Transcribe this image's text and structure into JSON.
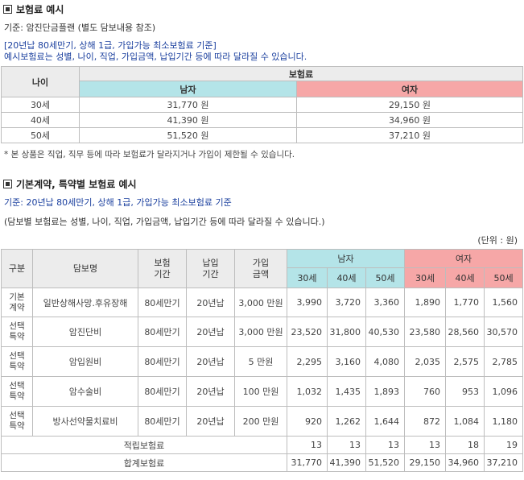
{
  "section1": {
    "title": "보험료 예시",
    "basis": "기준: 암진단금플랜 (별도 담보내용 참조)",
    "note_line1": "[20년납 80세만기, 상해 1급, 가입가능 최소보험료 기준]",
    "note_line2": "예시보험료는 성별, 나이, 직업, 가입금액, 납입기간 등에 따라 달라질 수 있습니다.",
    "table": {
      "age_header": "나이",
      "premium_header": "보험료",
      "male_header": "남자",
      "female_header": "여자",
      "rows": [
        {
          "age": "30세",
          "male": "31,770 원",
          "female": "29,150 원"
        },
        {
          "age": "40세",
          "male": "41,390 원",
          "female": "34,960 원"
        },
        {
          "age": "50세",
          "male": "51,520 원",
          "female": "37,210 원"
        }
      ]
    },
    "footnote": "*  본 상품은 직업, 직무 등에 따라 보험료가 달라지거나 가입이 제한될 수 있습니다."
  },
  "section2": {
    "title": "기본계약, 특약별 보험료 예시",
    "basis": "기준: 20년납 80세만기, 상해 1급, 가입가능 최소보험료 기준",
    "note": "(담보별 보험료는 성별, 나이, 직업, 가입금액, 납입기간 등에 따라 달라질 수 있습니다.)",
    "unit": "(단위 : 원)",
    "headers": {
      "type": "구분",
      "name": "담보명",
      "period": "보험\n기간",
      "pay": "납입\n기간",
      "amount": "가입\n금액",
      "male": "남자",
      "female": "여자",
      "ages": [
        "30세",
        "40세",
        "50세"
      ]
    },
    "rows": [
      {
        "type": "기본\n계약",
        "name": "일반상해사망.후유장해",
        "period": "80세만기",
        "pay": "20년납",
        "amount": "3,000 만원",
        "values": [
          "3,990",
          "3,720",
          "3,360",
          "1,890",
          "1,770",
          "1,560"
        ]
      },
      {
        "type": "선택\n특약",
        "name": "암진단비",
        "period": "80세만기",
        "pay": "20년납",
        "amount": "3,000 만원",
        "values": [
          "23,520",
          "31,800",
          "40,530",
          "23,580",
          "28,560",
          "30,570"
        ]
      },
      {
        "type": "선택\n특약",
        "name": "암입원비",
        "period": "80세만기",
        "pay": "20년납",
        "amount": "5 만원",
        "values": [
          "2,295",
          "3,160",
          "4,080",
          "2,035",
          "2,575",
          "2,785"
        ]
      },
      {
        "type": "선택\n특약",
        "name": "암수술비",
        "period": "80세만기",
        "pay": "20년납",
        "amount": "100 만원",
        "values": [
          "1,032",
          "1,435",
          "1,893",
          "760",
          "953",
          "1,096"
        ]
      },
      {
        "type": "선택\n특약",
        "name": "방사선약물치료비",
        "period": "80세만기",
        "pay": "20년납",
        "amount": "200 만원",
        "values": [
          "920",
          "1,262",
          "1,644",
          "872",
          "1,084",
          "1,180"
        ]
      }
    ],
    "savings": {
      "label": "적립보험료",
      "values": [
        "13",
        "13",
        "13",
        "13",
        "18",
        "19"
      ]
    },
    "total": {
      "label": "합계보험료",
      "values": [
        "31,770",
        "41,390",
        "51,520",
        "29,150",
        "34,960",
        "37,210"
      ]
    }
  }
}
